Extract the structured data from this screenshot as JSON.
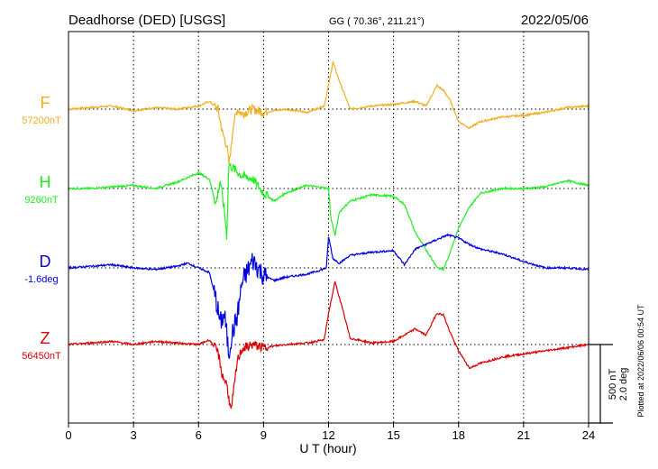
{
  "header": {
    "station": "Deadhorse (DED)  [USGS]",
    "coords": "GG ( 70.36°, 211.21°)",
    "date": "2022/05/06"
  },
  "side_note": "Plotted at 2022/06/06 00:54 UT",
  "scale_bar": {
    "nt_label": "500 nT",
    "deg_label": "2.0 deg"
  },
  "chart_data": {
    "type": "line",
    "xlabel": "U T (hour)",
    "xlim": [
      0,
      24
    ],
    "xticks": [
      "0",
      "3",
      "6",
      "9",
      "12",
      "15",
      "18",
      "21",
      "24"
    ],
    "grid": true,
    "series": [
      {
        "name": "F",
        "baseline_label": "57200nT",
        "color": "#f0b020",
        "x": [
          0,
          1,
          2,
          3,
          4,
          5,
          6,
          6.5,
          6.9,
          7.1,
          7.3,
          7.4,
          7.5,
          7.6,
          7.8,
          8,
          8.5,
          9,
          10,
          11,
          11.8,
          12,
          12.2,
          12.5,
          13,
          14,
          15,
          16,
          16.5,
          17,
          17.3,
          17.6,
          18,
          18.5,
          19,
          20,
          21,
          22,
          23,
          24
        ],
        "y": [
          0,
          10,
          20,
          -10,
          10,
          0,
          20,
          50,
          0,
          -150,
          -230,
          -350,
          -250,
          -100,
          0,
          -30,
          0,
          -20,
          0,
          -20,
          20,
          150,
          300,
          180,
          0,
          20,
          30,
          50,
          20,
          150,
          120,
          60,
          -80,
          -120,
          -80,
          -50,
          -40,
          -20,
          10,
          20
        ]
      },
      {
        "name": "H",
        "baseline_label": "9260nT",
        "color": "#22ee22",
        "x": [
          0,
          1,
          2,
          3,
          4,
          5,
          6,
          6.5,
          6.8,
          7,
          7.2,
          7.3,
          7.4,
          7.6,
          8,
          8.5,
          9,
          9.5,
          10,
          11,
          12,
          12.1,
          12.3,
          12.5,
          13,
          14,
          15,
          15.5,
          16,
          17,
          17.3,
          17.5,
          18,
          18.5,
          19,
          20,
          21,
          22,
          23,
          24
        ],
        "y": [
          0,
          0,
          10,
          20,
          0,
          40,
          100,
          60,
          -100,
          50,
          -150,
          -300,
          150,
          130,
          80,
          60,
          -30,
          -80,
          -30,
          20,
          0,
          -180,
          -300,
          -150,
          -80,
          -40,
          -50,
          -100,
          -280,
          -500,
          -520,
          -450,
          -250,
          -120,
          -30,
          0,
          0,
          10,
          50,
          20
        ]
      },
      {
        "name": "D",
        "baseline_label": "-1.6deg",
        "color": "#0000dd",
        "x": [
          0,
          1,
          2,
          3,
          4,
          5,
          5.5,
          6,
          6.5,
          6.8,
          7,
          7.2,
          7.4,
          7.5,
          7.6,
          7.8,
          8,
          8.5,
          9,
          9.5,
          10,
          11,
          11.5,
          11.9,
          12,
          12.2,
          12.5,
          13,
          14,
          15,
          15.5,
          16,
          17,
          17.5,
          18,
          18.5,
          19,
          20,
          21,
          22,
          23,
          24
        ],
        "y": [
          0,
          10,
          20,
          0,
          -10,
          10,
          30,
          0,
          -30,
          -200,
          -350,
          -300,
          -550,
          -450,
          -400,
          -300,
          -100,
          50,
          -50,
          -80,
          -60,
          -40,
          -20,
          0,
          200,
          60,
          30,
          80,
          100,
          110,
          20,
          120,
          180,
          210,
          190,
          150,
          120,
          90,
          40,
          0,
          0,
          -10
        ]
      },
      {
        "name": "Z",
        "baseline_label": "56450nT",
        "color": "#dd0000",
        "x": [
          0,
          1,
          2,
          3,
          4,
          5,
          6,
          6.5,
          6.9,
          7.1,
          7.3,
          7.5,
          7.8,
          8,
          8.5,
          9,
          10,
          11,
          11.8,
          12,
          12.3,
          12.6,
          13,
          14,
          15,
          16,
          16.5,
          17,
          17.3,
          17.6,
          18,
          18.5,
          19,
          20,
          21,
          22,
          23,
          24
        ],
        "y": [
          0,
          10,
          20,
          0,
          20,
          10,
          0,
          30,
          -50,
          -200,
          -250,
          -430,
          -100,
          -30,
          0,
          -20,
          0,
          10,
          30,
          200,
          400,
          250,
          40,
          10,
          20,
          100,
          60,
          200,
          190,
          80,
          -40,
          -150,
          -120,
          -80,
          -60,
          -40,
          -20,
          0
        ]
      }
    ],
    "scale": {
      "nT_per_division": 500,
      "deg_per_division": 2.0
    }
  }
}
